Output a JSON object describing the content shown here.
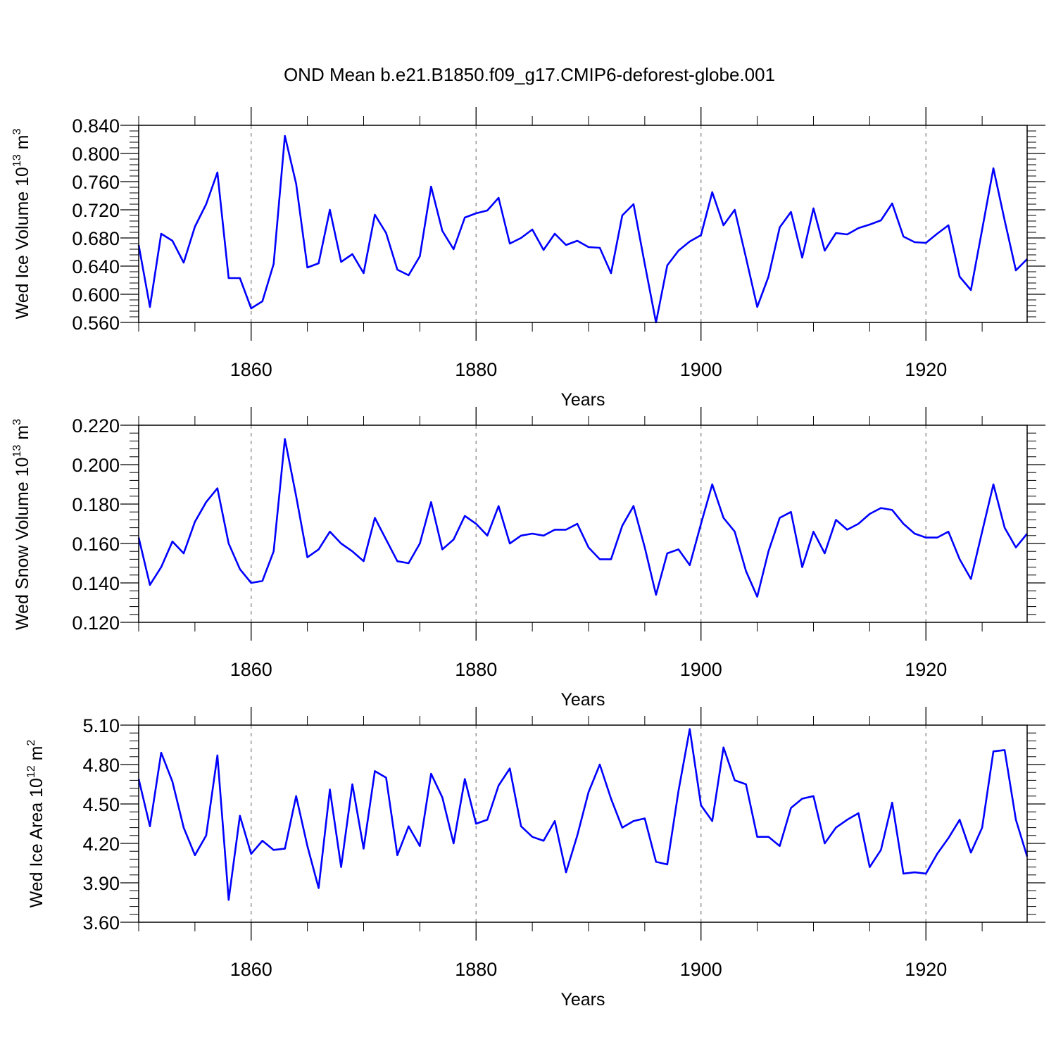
{
  "title": "OND Mean b.e21.B1850.f09_g17.CMIP6-deforest-globe.001",
  "colors": {
    "line": "#0000ff",
    "axis": "#000000",
    "grid": "#888888"
  },
  "chart_data": [
    {
      "type": "line",
      "name": "panel-ice-volume",
      "ylabel_prefix": "Wed Ice Volume 10",
      "ylabel_exp": "13",
      "ylabel_unit": " m",
      "ylabel_unit_exp": "3",
      "xlabel": "Years",
      "xlim": [
        1850,
        1929
      ],
      "ylim": [
        0.56,
        0.84
      ],
      "y_ticks": [
        "0.560",
        "0.600",
        "0.640",
        "0.680",
        "0.720",
        "0.760",
        "0.800",
        "0.840"
      ],
      "x_ticks": [
        "1860",
        "1880",
        "1900",
        "1920"
      ],
      "grid": "vertical-dashed",
      "x_start": 1850,
      "values": [
        0.67,
        0.582,
        0.686,
        0.676,
        0.645,
        0.696,
        0.728,
        0.773,
        0.623,
        0.623,
        0.58,
        0.59,
        0.643,
        0.825,
        0.757,
        0.638,
        0.644,
        0.72,
        0.646,
        0.657,
        0.63,
        0.713,
        0.687,
        0.635,
        0.627,
        0.654,
        0.753,
        0.69,
        0.664,
        0.709,
        0.715,
        0.719,
        0.737,
        0.672,
        0.68,
        0.692,
        0.663,
        0.686,
        0.67,
        0.676,
        0.667,
        0.666,
        0.63,
        0.712,
        0.728,
        0.643,
        0.56,
        0.641,
        0.662,
        0.675,
        0.684,
        0.745,
        0.698,
        0.72,
        0.652,
        0.582,
        0.625,
        0.695,
        0.717,
        0.652,
        0.722,
        0.662,
        0.687,
        0.685,
        0.694,
        0.699,
        0.705,
        0.729,
        0.682,
        0.674,
        0.673,
        0.686,
        0.698,
        0.625,
        0.606,
        0.692,
        0.779,
        0.705,
        0.634,
        0.65
      ]
    },
    {
      "type": "line",
      "name": "panel-snow-volume",
      "ylabel_prefix": "Wed Snow Volume 10",
      "ylabel_exp": "13",
      "ylabel_unit": " m",
      "ylabel_unit_exp": "3",
      "xlabel": "Years",
      "xlim": [
        1850,
        1929
      ],
      "ylim": [
        0.12,
        0.22
      ],
      "y_ticks": [
        "0.120",
        "0.140",
        "0.160",
        "0.180",
        "0.200",
        "0.220"
      ],
      "x_ticks": [
        "1860",
        "1880",
        "1900",
        "1920"
      ],
      "grid": "vertical-dashed",
      "x_start": 1850,
      "values": [
        0.163,
        0.139,
        0.148,
        0.161,
        0.155,
        0.171,
        0.181,
        0.188,
        0.16,
        0.147,
        0.14,
        0.141,
        0.156,
        0.213,
        0.184,
        0.153,
        0.157,
        0.166,
        0.16,
        0.156,
        0.151,
        0.173,
        0.162,
        0.151,
        0.15,
        0.16,
        0.181,
        0.157,
        0.162,
        0.174,
        0.17,
        0.164,
        0.179,
        0.16,
        0.164,
        0.165,
        0.164,
        0.167,
        0.167,
        0.17,
        0.158,
        0.152,
        0.152,
        0.169,
        0.179,
        0.158,
        0.134,
        0.155,
        0.157,
        0.149,
        0.17,
        0.19,
        0.173,
        0.166,
        0.146,
        0.133,
        0.156,
        0.173,
        0.176,
        0.148,
        0.166,
        0.155,
        0.172,
        0.167,
        0.17,
        0.175,
        0.178,
        0.177,
        0.17,
        0.165,
        0.163,
        0.163,
        0.166,
        0.152,
        0.142,
        0.166,
        0.19,
        0.168,
        0.158,
        0.165
      ]
    },
    {
      "type": "line",
      "name": "panel-ice-area",
      "ylabel_prefix": "Wed Ice Area 10",
      "ylabel_exp": "12",
      "ylabel_unit": " m",
      "ylabel_unit_exp": "2",
      "xlabel": "Years",
      "xlim": [
        1850,
        1929
      ],
      "ylim": [
        3.6,
        5.1
      ],
      "y_ticks": [
        "3.60",
        "3.90",
        "4.20",
        "4.50",
        "4.80",
        "5.10"
      ],
      "x_ticks": [
        "1860",
        "1880",
        "1900",
        "1920"
      ],
      "grid": "vertical-dashed",
      "x_start": 1850,
      "values": [
        4.69,
        4.33,
        4.89,
        4.67,
        4.32,
        4.11,
        4.26,
        4.87,
        3.77,
        4.41,
        4.12,
        4.22,
        4.15,
        4.16,
        4.56,
        4.18,
        3.86,
        4.61,
        4.02,
        4.65,
        4.16,
        4.75,
        4.7,
        4.11,
        4.33,
        4.18,
        4.73,
        4.55,
        4.2,
        4.69,
        4.35,
        4.38,
        4.64,
        4.77,
        4.33,
        4.25,
        4.22,
        4.37,
        3.98,
        4.26,
        4.59,
        4.8,
        4.54,
        4.32,
        4.37,
        4.39,
        4.06,
        4.04,
        4.6,
        5.07,
        4.49,
        4.37,
        4.93,
        4.68,
        4.65,
        4.25,
        4.25,
        4.18,
        4.47,
        4.54,
        4.56,
        4.2,
        4.32,
        4.38,
        4.43,
        4.02,
        4.15,
        4.51,
        3.97,
        3.98,
        3.97,
        4.12,
        4.24,
        4.38,
        4.13,
        4.32,
        4.9,
        4.91,
        4.38,
        4.1
      ]
    }
  ]
}
